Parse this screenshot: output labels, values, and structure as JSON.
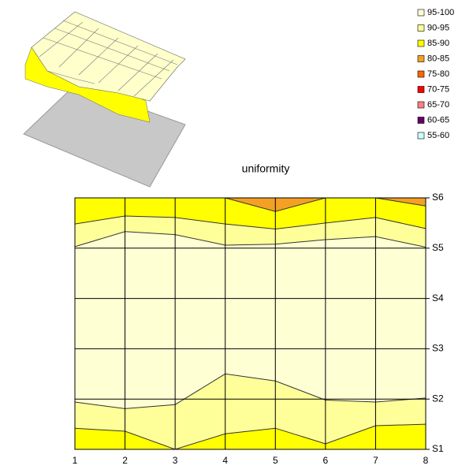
{
  "chart_data": {
    "type": "contour",
    "title": "uniformity",
    "x": [
      1,
      2,
      3,
      4,
      5,
      6,
      7,
      8
    ],
    "xlim": [
      1,
      8
    ],
    "xticks": [
      1,
      2,
      3,
      4,
      5,
      6,
      7,
      8
    ],
    "ylim": [
      1,
      6
    ],
    "yticks": [
      {
        "value": 1,
        "label": "S1"
      },
      {
        "value": 2,
        "label": "S2"
      },
      {
        "value": 3,
        "label": "S3"
      },
      {
        "value": 4,
        "label": "S4"
      },
      {
        "value": 5,
        "label": "S5"
      },
      {
        "value": 6,
        "label": "S6"
      }
    ],
    "grid": true,
    "legend": [
      {
        "name": "95-100",
        "color": "#ffffd4"
      },
      {
        "name": "90-95",
        "color": "#ffff99"
      },
      {
        "name": "85-90",
        "color": "#ffff00"
      },
      {
        "name": "80-85",
        "color": "#f4a024"
      },
      {
        "name": "75-80",
        "color": "#ff6600"
      },
      {
        "name": "70-75",
        "color": "#ff0000"
      },
      {
        "name": "65-70",
        "color": "#ff8080"
      },
      {
        "name": "60-65",
        "color": "#660066"
      },
      {
        "name": "55-60",
        "color": "#ccffff"
      }
    ],
    "series": [
      {
        "name": "85-90",
        "values": [
          1.42,
          1.36,
          1.0,
          1.31,
          1.42,
          1.11,
          1.47,
          1.5
        ]
      },
      {
        "name": "90-95",
        "values": [
          1.94,
          1.81,
          1.89,
          2.5,
          2.36,
          1.98,
          1.94,
          2.02
        ]
      },
      {
        "name": "95-100",
        "values": [
          5.03,
          5.33,
          5.27,
          5.06,
          5.08,
          5.17,
          5.23,
          5.02
        ]
      },
      {
        "name": "90-95",
        "values": [
          5.48,
          5.64,
          5.61,
          5.48,
          5.38,
          5.5,
          5.61,
          5.39
        ]
      },
      {
        "name": "85-90",
        "values": [
          6,
          6,
          6,
          6,
          5.73,
          6,
          6,
          5.84
        ]
      },
      {
        "name": "80-85",
        "values": [
          6,
          6,
          6,
          6,
          6,
          6,
          6,
          6
        ]
      }
    ]
  }
}
